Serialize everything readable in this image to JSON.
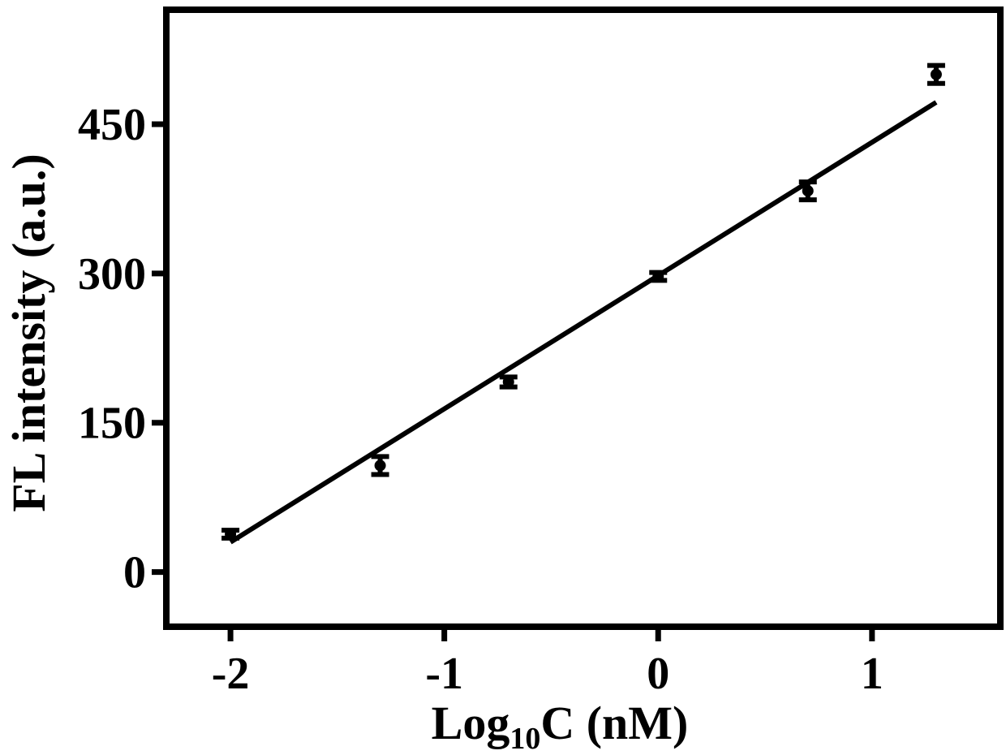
{
  "chart_data": {
    "type": "scatter",
    "title": "",
    "xlabel": {
      "prefix": "Log",
      "subscript": "10",
      "suffix": "C (nM)"
    },
    "ylabel": "FL intensity (a.u.)",
    "xlim": [
      -2.3,
      1.6
    ],
    "ylim": [
      -55,
      565
    ],
    "x_ticks": [
      -2,
      -1,
      0,
      1
    ],
    "x_tick_labels": [
      "-2",
      "-1",
      "0",
      "1"
    ],
    "y_ticks": [
      0,
      150,
      300,
      450
    ],
    "y_tick_labels": [
      "0",
      "150",
      "300",
      "450"
    ],
    "grid": false,
    "legend": "none",
    "series": [
      {
        "x": [
          -2,
          -1.3,
          -0.7,
          0,
          0.7,
          1.3
        ],
        "y": [
          38,
          107,
          191,
          297,
          383,
          500
        ],
        "err": [
          4,
          9,
          5,
          4,
          9,
          9
        ]
      }
    ],
    "fit_line": {
      "x": [
        -2,
        1.3
      ],
      "y": [
        30,
        472
      ]
    },
    "colors": {
      "marks": "#000000",
      "background": "#ffffff"
    }
  }
}
